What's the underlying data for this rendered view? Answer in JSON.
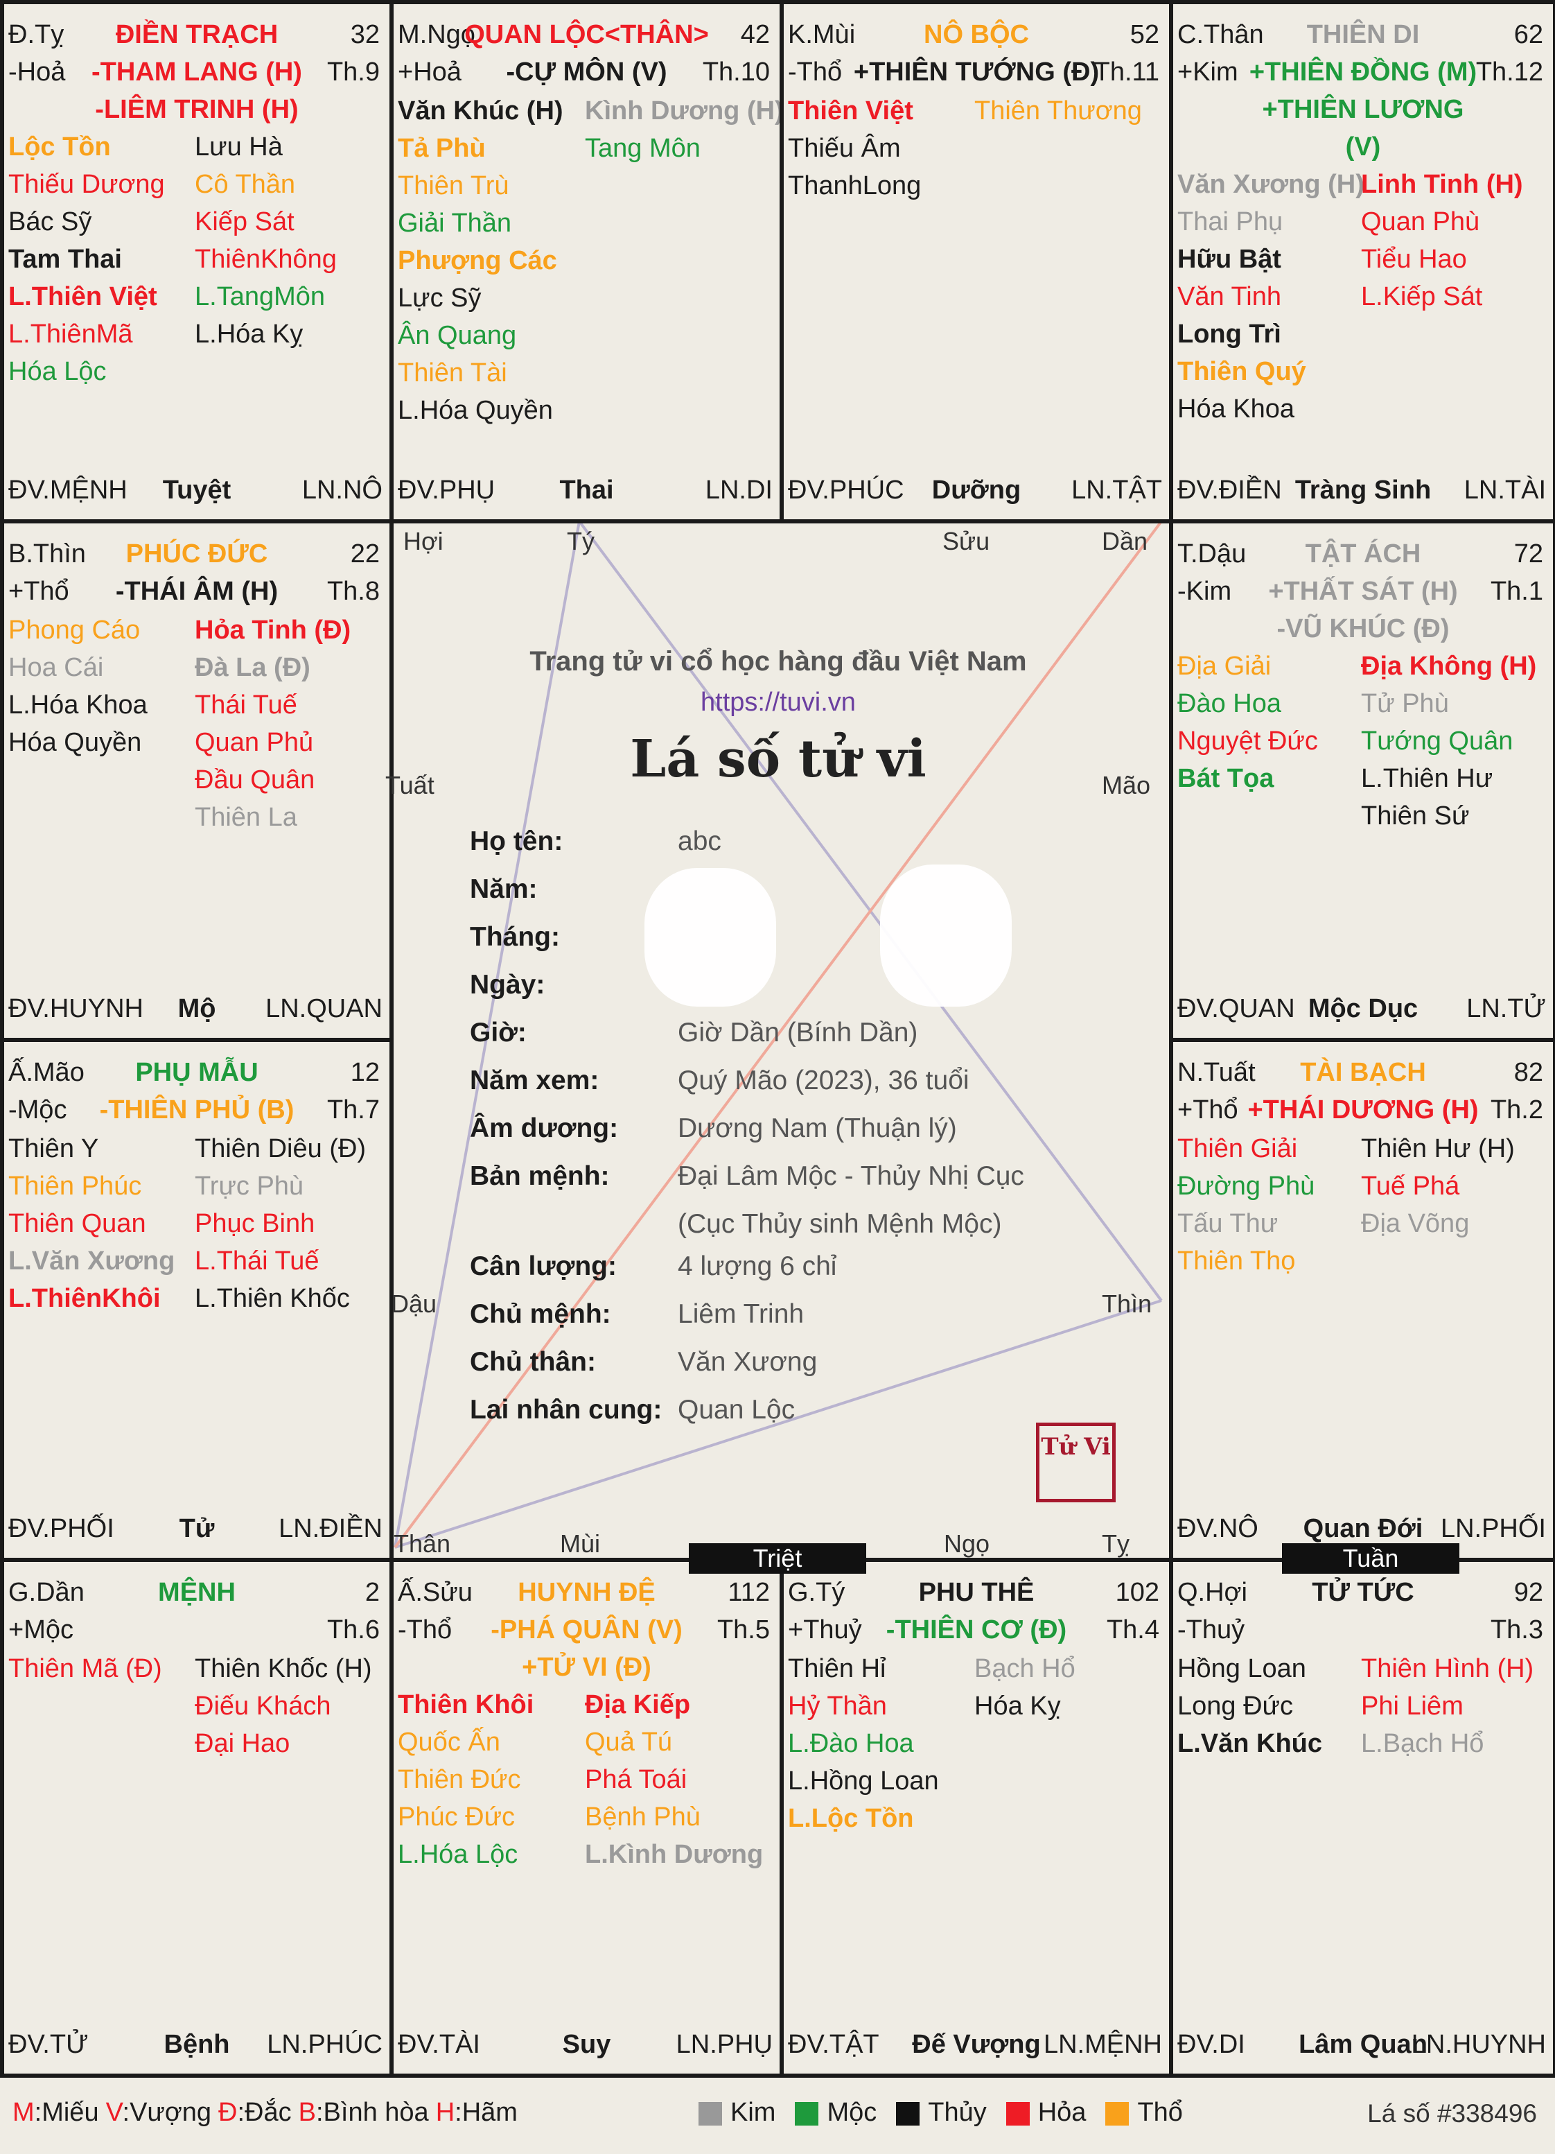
{
  "palaces": [
    {
      "key": "ty",
      "header": "Đ.Tỵ",
      "name": "ĐIỀN TRẠCH",
      "age": "32",
      "elem": "-Hoả",
      "mainStars": [
        "-THAM LANG (H)",
        "-LIÊM TRINH (H)"
      ],
      "month": "Th.9",
      "left": [
        [
          "Lộc Tồn",
          "org b"
        ],
        [
          "Thiếu Dương",
          "red"
        ],
        [
          "Bác Sỹ",
          "blk"
        ],
        [
          "Tam Thai",
          "blk b"
        ],
        [
          "L.Thiên Việt",
          "red b"
        ],
        [
          "L.ThiênMã",
          "red"
        ],
        [
          "Hóa Lộc",
          "grn"
        ]
      ],
      "right": [
        [
          "Lưu Hà",
          "blk"
        ],
        [
          "Cô Thần",
          "org"
        ],
        [
          "Kiếp Sát",
          "red"
        ],
        [
          "ThiênKhông",
          "red"
        ],
        [
          "L.TangMôn",
          "grn"
        ],
        [
          "L.Hóa Kỵ",
          "blk"
        ]
      ],
      "dv": "ĐV.MỆNH",
      "stage": "Tuyệt",
      "ln": "LN.NÔ"
    },
    {
      "key": "ngo",
      "header": "M.Ngọ",
      "name": "QUAN LỘC<THÂN>",
      "age": "42",
      "elem": "+Hoả",
      "mainStars": [
        "-CỰ MÔN (V)"
      ],
      "month": "Th.10",
      "left": [
        [
          "Văn Khúc (H)",
          "blk b"
        ],
        [
          "Tả Phù",
          "org b"
        ],
        [
          "Thiên Trù",
          "org"
        ],
        [
          "Giải Thần",
          "grn"
        ],
        [
          "Phượng Các",
          "org b"
        ],
        [
          "Lực Sỹ",
          "blk"
        ],
        [
          "Ân Quang",
          "grn"
        ],
        [
          "Thiên Tài",
          "org"
        ],
        [
          "L.Hóa Quyền",
          "blk"
        ]
      ],
      "right": [
        [
          "Kình Dương (H)",
          "gry b"
        ],
        [
          "Tang Môn",
          "grn"
        ]
      ],
      "dv": "ĐV.PHỤ",
      "stage": "Thai",
      "ln": "LN.DI"
    },
    {
      "key": "mui",
      "header": "K.Mùi",
      "name": "NÔ BỘC",
      "age": "52",
      "elem": "-Thổ",
      "mainStars": [
        "+THIÊN TƯỚNG (Đ)"
      ],
      "month": "Th.11",
      "left": [
        [
          "Thiên Việt",
          "red b"
        ],
        [
          "Thiếu Âm",
          "blk"
        ],
        [
          "ThanhLong",
          "blk"
        ]
      ],
      "right": [
        [
          "Thiên Thương",
          "org"
        ]
      ],
      "dv": "ĐV.PHÚC",
      "stage": "Dưỡng",
      "ln": "LN.TẬT"
    },
    {
      "key": "than",
      "header": "C.Thân",
      "name": "THIÊN DI",
      "age": "62",
      "elem": "+Kim",
      "mainStars": [
        "+THIÊN ĐỒNG (M)",
        "+THIÊN LƯƠNG",
        "(V)"
      ],
      "month": "Th.12",
      "left": [
        [
          "Văn Xương (H)",
          "gry b"
        ],
        [
          "Thai Phụ",
          "gry"
        ],
        [
          "Hữu Bật",
          "blk b"
        ],
        [
          "Văn Tinh",
          "red"
        ],
        [
          "Long Trì",
          "blk b"
        ],
        [
          "Thiên Quý",
          "org b"
        ],
        [
          "Hóa Khoa",
          "blk"
        ]
      ],
      "right": [
        [
          "Linh Tinh (H)",
          "red b"
        ],
        [
          "Quan Phù",
          "red"
        ],
        [
          "Tiểu Hao",
          "red"
        ],
        [
          "L.Kiếp Sát",
          "red"
        ]
      ],
      "dv": "ĐV.ĐIỀN",
      "stage": "Tràng Sinh",
      "ln": "LN.TÀI"
    },
    {
      "key": "thin",
      "header": "B.Thìn",
      "name": "PHÚC ĐỨC",
      "age": "22",
      "elem": "+Thổ",
      "mainStars": [
        "-THÁI ÂM (H)"
      ],
      "month": "Th.8",
      "left": [
        [
          "Phong Cáo",
          "org"
        ],
        [
          "Hoa Cái",
          "gry"
        ],
        [
          "L.Hóa Khoa",
          "blk"
        ],
        [
          "Hóa Quyền",
          "blk"
        ]
      ],
      "right": [
        [
          "Hỏa Tinh (Đ)",
          "red b"
        ],
        [
          "Đà La (Đ)",
          "gry b"
        ],
        [
          "Thái Tuế",
          "red"
        ],
        [
          "Quan Phủ",
          "red"
        ],
        [
          "Đầu Quân",
          "red"
        ],
        [
          "Thiên La",
          "gry"
        ]
      ],
      "dv": "ĐV.HUYNH",
      "stage": "Mộ",
      "ln": "LN.QUAN"
    },
    {
      "key": "dau",
      "header": "T.Dậu",
      "name": "TẬT ÁCH",
      "age": "72",
      "elem": "-Kim",
      "mainStars": [
        "+THẤT SÁT (H)",
        "-VŨ KHÚC (Đ)"
      ],
      "month": "Th.1",
      "left": [
        [
          "Địa Giải",
          "org"
        ],
        [
          "Đào Hoa",
          "grn"
        ],
        [
          "Nguyệt Đức",
          "red"
        ],
        [
          "Bát Tọa",
          "grn b"
        ]
      ],
      "right": [
        [
          "Địa Không (H)",
          "red b"
        ],
        [
          "Tử Phù",
          "gry"
        ],
        [
          "Tướng Quân",
          "grn"
        ],
        [
          "L.Thiên Hư",
          "blk"
        ],
        [
          "Thiên Sứ",
          "blk"
        ]
      ],
      "dv": "ĐV.QUAN",
      "stage": "Mộc Dục",
      "ln": "LN.TỬ"
    },
    {
      "key": "mao",
      "header": "Ấ.Mão",
      "name": "PHỤ MẪU",
      "age": "12",
      "elem": "-Mộc",
      "mainStars": [
        "-THIÊN PHỦ (B)"
      ],
      "month": "Th.7",
      "left": [
        [
          "Thiên Y",
          "blk"
        ],
        [
          "Thiên Phúc",
          "org"
        ],
        [
          "Thiên Quan",
          "red"
        ],
        [
          "L.Văn Xương",
          "gry b"
        ],
        [
          "L.ThiênKhôi",
          "red b"
        ]
      ],
      "right": [
        [
          "Thiên Diêu (Đ)",
          "blk"
        ],
        [
          "Trực Phù",
          "gry"
        ],
        [
          "Phục Binh",
          "red"
        ],
        [
          "L.Thái Tuế",
          "red"
        ],
        [
          "L.Thiên Khốc",
          "blk"
        ]
      ],
      "dv": "ĐV.PHỐI",
      "stage": "Tử",
      "ln": "LN.ĐIỀN"
    },
    {
      "key": "tuat",
      "header": "N.Tuất",
      "name": "TÀI BẠCH",
      "age": "82",
      "elem": "+Thổ",
      "mainStars": [
        "+THÁI DƯƠNG (H)"
      ],
      "month": "Th.2",
      "left": [
        [
          "Thiên Giải",
          "red"
        ],
        [
          "Đường Phù",
          "grn"
        ],
        [
          "Tấu Thư",
          "gry"
        ],
        [
          "Thiên Thọ",
          "org"
        ]
      ],
      "right": [
        [
          "Thiên Hư (H)",
          "blk"
        ],
        [
          "Tuế Phá",
          "red"
        ],
        [
          "Địa Võng",
          "gry"
        ]
      ],
      "dv": "ĐV.NÔ",
      "stage": "Quan Đới",
      "ln": "LN.PHỐI"
    },
    {
      "key": "dan",
      "header": "G.Dần",
      "name": "MỆNH",
      "age": "2",
      "elem": "+Mộc",
      "mainStars": [],
      "month": "Th.6",
      "left": [
        [
          "Thiên Mã (Đ)",
          "red"
        ]
      ],
      "right": [
        [
          "Thiên Khốc (H)",
          "blk"
        ],
        [
          "Điếu Khách",
          "red"
        ],
        [
          "Đại Hao",
          "red"
        ]
      ],
      "dv": "ĐV.TỬ",
      "stage": "Bệnh",
      "ln": "LN.PHÚC"
    },
    {
      "key": "suu",
      "header": "Ấ.Sửu",
      "name": "HUYNH ĐỆ",
      "age": "112",
      "elem": "-Thổ",
      "mainStars": [
        "-PHÁ QUÂN (V)",
        "+TỬ VI (Đ)"
      ],
      "month": "Th.5",
      "left": [
        [
          "Thiên Khôi",
          "red b"
        ],
        [
          "Quốc Ấn",
          "org"
        ],
        [
          "Thiên Đức",
          "org"
        ],
        [
          "Phúc Đức",
          "org"
        ],
        [
          "L.Hóa Lộc",
          "grn"
        ]
      ],
      "right": [
        [
          "Địa Kiếp",
          "red b"
        ],
        [
          "Quả Tú",
          "org"
        ],
        [
          "Phá Toái",
          "red"
        ],
        [
          "Bệnh Phù",
          "org"
        ],
        [
          "L.Kình Dương",
          "gry b"
        ]
      ],
      "dv": "ĐV.TÀI",
      "stage": "Suy",
      "ln": "LN.PHỤ"
    },
    {
      "key": "ti",
      "header": "G.Tý",
      "name": "PHU THÊ",
      "age": "102",
      "elem": "+Thuỷ",
      "mainStars": [
        "-THIÊN CƠ (Đ)"
      ],
      "month": "Th.4",
      "left": [
        [
          "Thiên Hỉ",
          "blk"
        ],
        [
          "Hỷ Thần",
          "red"
        ],
        [
          "L.Đào Hoa",
          "grn"
        ],
        [
          "L.Hồng Loan",
          "blk"
        ],
        [
          "L.Lộc Tồn",
          "org b"
        ]
      ],
      "right": [
        [
          "Bạch Hổ",
          "gry"
        ],
        [
          "Hóa Kỵ",
          "blk"
        ]
      ],
      "dv": "ĐV.TẬT",
      "stage": "Đế Vượng",
      "ln": "LN.MỆNH"
    },
    {
      "key": "hoi",
      "header": "Q.Hợi",
      "name": "TỬ TỨC",
      "age": "92",
      "elem": "-Thuỷ",
      "mainStars": [],
      "month": "Th.3",
      "left": [
        [
          "Hồng Loan",
          "blk"
        ],
        [
          "Long Đức",
          "blk"
        ],
        [
          "L.Văn Khúc",
          "blk b"
        ]
      ],
      "right": [
        [
          "Thiên Hình (H)",
          "red"
        ],
        [
          "Phi Liêm",
          "red"
        ],
        [
          "L.Bạch Hổ",
          "gry"
        ]
      ],
      "dv": "ĐV.DI",
      "stage": "Lâm Quan",
      "ln": "LN.HUYNH"
    }
  ],
  "center": {
    "site_line": "Trang tử vi cổ học hàng đầu Việt Nam",
    "url": "https://tuvi.vn",
    "title": "Lá số tử vi",
    "rows": [
      {
        "label": "Họ tên:",
        "value": "abc"
      },
      {
        "label": "Năm:",
        "value": ""
      },
      {
        "label": "Tháng:",
        "value": ""
      },
      {
        "label": "Ngày:",
        "value": ""
      },
      {
        "label": "Giờ:",
        "value": "Giờ Dần (Bính Dần)"
      },
      {
        "label": "Năm xem:",
        "value": "Quý Mão (2023), 36 tuổi"
      },
      {
        "label": "Âm dương:",
        "value": "Dương Nam (Thuận lý)"
      },
      {
        "label": "Bản mệnh:",
        "value": "Đại Lâm Mộc - Thủy Nhị Cục"
      },
      {
        "label": "",
        "value": "(Cục Thủy sinh Mệnh Mộc)"
      },
      {
        "label": "Cân lượng:",
        "value": "4 lượng 6 chỉ"
      },
      {
        "label": "Chủ mệnh:",
        "value": "Liêm Trinh"
      },
      {
        "label": "Chủ thân:",
        "value": "Văn Xương"
      },
      {
        "label": "Lai nhân cung:",
        "value": "Quan Lộc"
      }
    ],
    "branches": {
      "hoi": "Hợi",
      "ty_top": "Tý",
      "suu": "Sửu",
      "dan": "Dần",
      "tuat": "Tuất",
      "mao": "Mão",
      "dau": "Dậu",
      "thin": "Thìn",
      "than": "Thân",
      "mui": "Mùi",
      "ngo": "Ngọ",
      "ty_bot": "Tỵ"
    },
    "stamp": "Tử Vi"
  },
  "tags": {
    "triet": "Triệt",
    "tuan": "Tuần"
  },
  "footer": {
    "legend_letters": [
      [
        "M",
        ":Miếu"
      ],
      [
        "V",
        ":Vượng"
      ],
      [
        "Đ",
        ":Đắc"
      ],
      [
        "B",
        ":Bình hòa"
      ],
      [
        "H",
        ":Hãm"
      ]
    ],
    "elements": [
      {
        "name": "Kim",
        "color": "#999999"
      },
      {
        "name": "Mộc",
        "color": "#1e9a3c"
      },
      {
        "name": "Thủy",
        "color": "#111111"
      },
      {
        "name": "Hỏa",
        "color": "#ee1c25"
      },
      {
        "name": "Thổ",
        "color": "#f9a11b"
      }
    ],
    "chart_no": "Lá số #338496"
  },
  "colors": {
    "red": "#ee1c25",
    "orange": "#f9a11b",
    "green": "#1e9a3c",
    "gray": "#9a9a9a",
    "black": "#1c1c1c",
    "purple": "#7a3fa0"
  }
}
